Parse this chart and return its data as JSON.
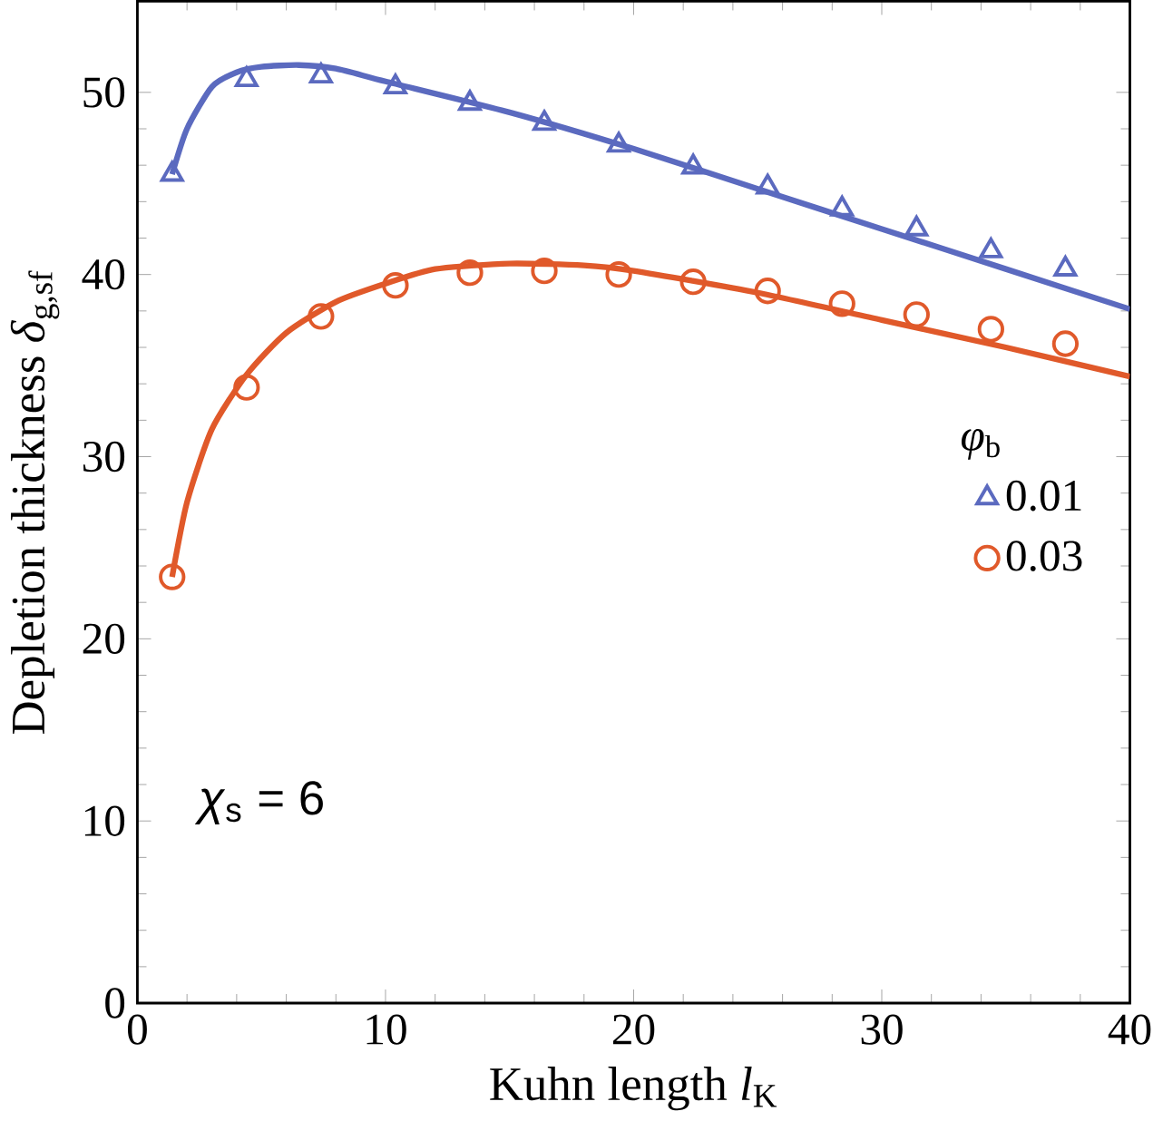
{
  "chart_data": {
    "type": "line",
    "xlabel": "Kuhn length *l*$_{K}$",
    "ylabel": "Depletion thickness *δ*$_{g,sf}$",
    "legend_title": "*φ*$_{b}$",
    "annotations": [
      "*χ*$_{s}$ = 6"
    ],
    "xlim": [
      0,
      40
    ],
    "ylim": [
      0,
      55
    ],
    "xticks": [
      0,
      10,
      20,
      30,
      40
    ],
    "yticks": [
      0,
      10,
      20,
      30,
      40,
      50
    ],
    "legend": "right",
    "series": [
      {
        "name": "0.01",
        "type": "scatter",
        "marker": "triangle",
        "color": "#5b6abf",
        "x": [
          1.4,
          4.4,
          7.4,
          10.4,
          13.4,
          16.4,
          19.4,
          22.4,
          25.4,
          28.4,
          31.4,
          34.4,
          37.4
        ],
        "values": [
          45.5,
          50.7,
          50.9,
          50.3,
          49.4,
          48.3,
          47.1,
          45.9,
          44.8,
          43.6,
          42.5,
          41.3,
          40.3
        ]
      },
      {
        "name": "0.03",
        "type": "scatter",
        "marker": "circle",
        "color": "#e0592a",
        "x": [
          1.4,
          4.4,
          7.4,
          10.4,
          13.4,
          16.4,
          19.4,
          22.4,
          25.4,
          28.4,
          31.4,
          34.4,
          37.4
        ],
        "values": [
          23.4,
          33.8,
          37.7,
          39.4,
          40.1,
          40.2,
          40.0,
          39.6,
          39.1,
          38.4,
          37.8,
          37.0,
          36.2
        ]
      },
      {
        "marker": "none",
        "color": "#5b6abf",
        "x": [
          1.4,
          2,
          3,
          4,
          5,
          6.5,
          8,
          10,
          15,
          20,
          25,
          30,
          35,
          40
        ],
        "values": [
          45.5,
          48,
          50.3,
          51.1,
          51.4,
          51.5,
          51.3,
          50.6,
          48.9,
          46.9,
          44.7,
          42.5,
          40.3,
          38.1
        ]
      },
      {
        "marker": "none",
        "color": "#e0592a",
        "x": [
          1.4,
          2,
          3,
          4.4,
          6,
          8,
          10,
          12,
          15,
          18,
          20,
          25,
          30,
          35,
          40
        ],
        "values": [
          23.4,
          27.5,
          31.5,
          34.5,
          36.8,
          38.5,
          39.5,
          40.3,
          40.6,
          40.5,
          40.2,
          39.0,
          37.5,
          36.0,
          34.4
        ]
      }
    ]
  }
}
